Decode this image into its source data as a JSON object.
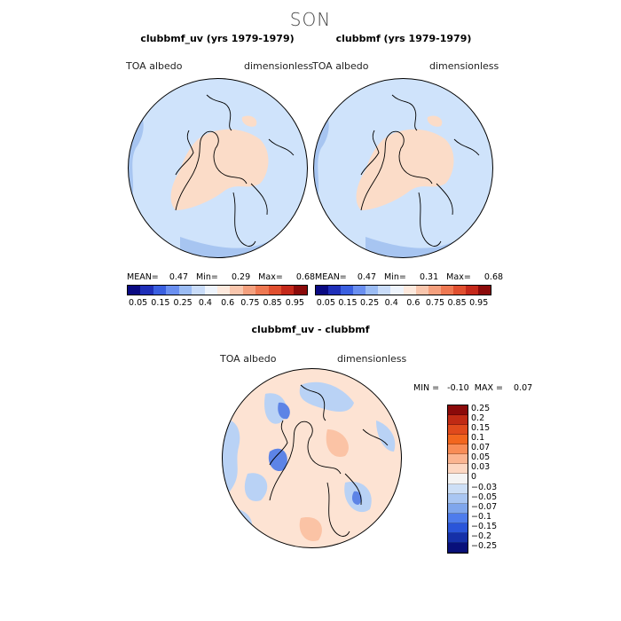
{
  "figure": {
    "title": "SON"
  },
  "panels": [
    {
      "title": "clubbmf_uv (yrs 1979-1979)",
      "left_label": "TOA  albedo",
      "right_label": "dimensionless",
      "stats": "MEAN=    0.47   Min=     0.29   Max=     0.68"
    },
    {
      "title": "clubbmf (yrs 1979-1979)",
      "left_label": "TOA  albedo",
      "right_label": "dimensionless",
      "stats": "MEAN=    0.47   Min=     0.31   Max=     0.68"
    },
    {
      "title": "clubbmf_uv - clubbmf",
      "left_label": "TOA  albedo",
      "right_label": "dimensionless",
      "stats": "MIN =   -0.10  MAX =    0.07"
    }
  ],
  "colorbar_top": {
    "colors": [
      "#0a0a82",
      "#1f2fb8",
      "#3a5fe0",
      "#6a8ff0",
      "#9bbcf4",
      "#c9dcf9",
      "#eef4fc",
      "#fde9dd",
      "#f9c6ad",
      "#f4a07e",
      "#ee7852",
      "#e04f2f",
      "#c4281a",
      "#8b0a0a"
    ],
    "ticks": [
      "0.05",
      "0.15",
      "0.25",
      "0.4",
      "0.6",
      "0.75",
      "0.85",
      "0.95"
    ]
  },
  "colorbar_diff": {
    "colors": [
      "#8b0a0a",
      "#c02a14",
      "#e04a1c",
      "#f2661e",
      "#f88c56",
      "#fbb490",
      "#fdd7c2",
      "#f4f4f4",
      "#cddff6",
      "#a9c6f2",
      "#7fa6ec",
      "#4e7cec",
      "#2a55d9",
      "#1530a8",
      "#08107a"
    ],
    "ticks": [
      "0.25",
      "0.2",
      "0.15",
      "0.1",
      "0.07",
      "0.05",
      "0.03",
      "0",
      "−0.03",
      "−0.05",
      "−0.07",
      "−0.1",
      "−0.15",
      "−0.2",
      "−0.25"
    ]
  },
  "map_colors": {
    "ocean_blue": "#cfe3fb",
    "deep_blue": "#a7c5f1",
    "land_warm": "#fbdcc8",
    "diff_pos": "#fbd1b8",
    "diff_neg": "#b9d2f5",
    "diff_strong_neg": "#5d84e6"
  }
}
